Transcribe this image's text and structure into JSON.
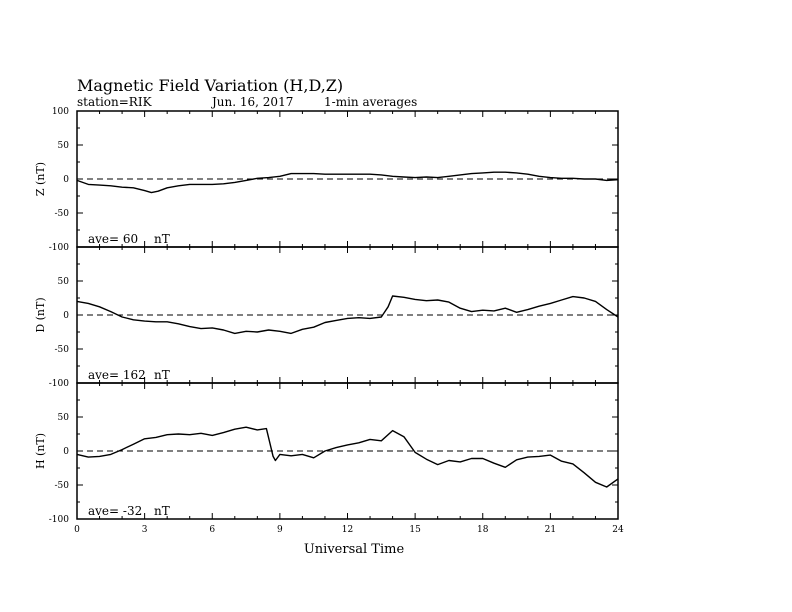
{
  "title": "Magnetic Field Variation (H,D,Z)",
  "subtitle": {
    "station": "station=RIK",
    "date": "Jun. 16, 2017",
    "resolution": "1-min averages"
  },
  "chart_data": {
    "type": "line",
    "xlabel": "Universal Time",
    "xlim": [
      0,
      24
    ],
    "xticks": [
      "0",
      "3",
      "6",
      "9",
      "12",
      "15",
      "18",
      "21",
      "24"
    ],
    "ylim": [
      -100,
      100
    ],
    "yticks": [
      "100",
      "50",
      "0",
      "-50",
      "-100"
    ],
    "zero_line": "dashed",
    "panels": [
      {
        "name": "Z",
        "ylabel": "Z (nT)",
        "ave_text": "ave= 60",
        "ave_unit": "nT",
        "x": [
          0,
          0.5,
          1,
          1.5,
          2,
          2.5,
          3,
          3.3,
          3.6,
          4,
          4.5,
          5,
          5.5,
          6,
          6.5,
          7,
          7.5,
          8,
          8.5,
          9,
          9.5,
          10,
          10.5,
          11,
          11.5,
          12,
          12.5,
          13,
          13.5,
          14,
          14.5,
          15,
          15.5,
          16,
          16.5,
          17,
          17.5,
          18,
          18.5,
          19,
          19.5,
          20,
          20.5,
          21,
          21.5,
          22,
          22.5,
          23,
          23.5,
          24
        ],
        "values": [
          -2,
          -8,
          -9,
          -10,
          -12,
          -13,
          -17,
          -20,
          -18,
          -13,
          -10,
          -8,
          -8,
          -8,
          -7,
          -5,
          -2,
          1,
          2,
          4,
          8,
          8,
          8,
          7,
          7,
          7,
          7,
          7,
          6,
          4,
          3,
          2,
          3,
          2,
          4,
          6,
          8,
          9,
          10,
          10,
          9,
          7,
          4,
          2,
          1,
          1,
          0,
          0,
          -2,
          -1
        ]
      },
      {
        "name": "D",
        "ylabel": "D (nT)",
        "ave_text": "ave= 162",
        "ave_unit": "nT",
        "x": [
          0,
          0.5,
          1,
          1.5,
          2,
          2.5,
          3,
          3.5,
          4,
          4.5,
          5,
          5.5,
          6,
          6.5,
          7,
          7.5,
          8,
          8.5,
          9,
          9.5,
          10,
          10.5,
          11,
          11.5,
          12,
          12.5,
          13,
          13.5,
          13.8,
          14,
          14.5,
          15,
          15.5,
          16,
          16.5,
          17,
          17.5,
          18,
          18.5,
          19,
          19.5,
          20,
          20.5,
          21,
          21.5,
          22,
          22.5,
          23,
          23.5,
          24
        ],
        "values": [
          20,
          17,
          12,
          5,
          -3,
          -7,
          -9,
          -10,
          -10,
          -13,
          -17,
          -20,
          -19,
          -22,
          -27,
          -24,
          -25,
          -22,
          -24,
          -27,
          -21,
          -18,
          -11,
          -8,
          -5,
          -4,
          -5,
          -3,
          12,
          28,
          26,
          23,
          21,
          22,
          19,
          10,
          5,
          7,
          6,
          10,
          4,
          8,
          13,
          17,
          22,
          27,
          25,
          20,
          8,
          -3
        ]
      },
      {
        "name": "H",
        "ylabel": "H (nT)",
        "ave_text": "ave= -32",
        "ave_unit": "nT",
        "x": [
          0,
          0.5,
          1,
          1.5,
          2,
          2.5,
          3,
          3.5,
          4,
          4.5,
          5,
          5.5,
          6,
          6.5,
          7,
          7.5,
          8,
          8.4,
          8.7,
          8.8,
          9,
          9.5,
          10,
          10.5,
          11,
          11.5,
          12,
          12.5,
          13,
          13.5,
          14,
          14.5,
          15,
          15.5,
          16,
          16.5,
          17,
          17.5,
          18,
          18.5,
          19,
          19.5,
          20,
          20.5,
          21,
          21.5,
          22,
          22.5,
          23,
          23.5,
          24
        ],
        "values": [
          -5,
          -9,
          -8,
          -5,
          2,
          10,
          18,
          20,
          24,
          25,
          24,
          26,
          23,
          27,
          32,
          35,
          31,
          33,
          -8,
          -14,
          -5,
          -7,
          -5,
          -10,
          0,
          5,
          9,
          12,
          17,
          15,
          30,
          21,
          -2,
          -12,
          -20,
          -14,
          -16,
          -11,
          -11,
          -18,
          -24,
          -13,
          -9,
          -8,
          -6,
          -15,
          -19,
          -32,
          -46,
          -53,
          -41
        ]
      }
    ]
  }
}
